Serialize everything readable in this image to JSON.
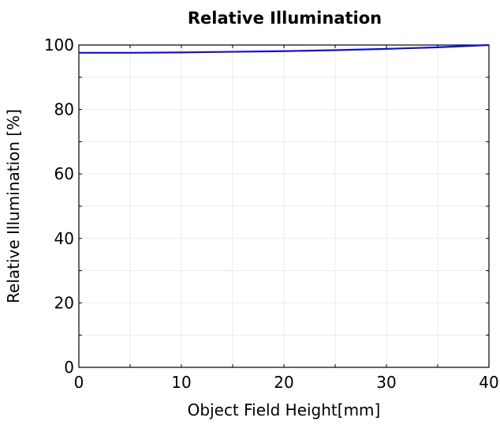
{
  "chart_data": {
    "type": "line",
    "title": "Relative Illumination",
    "xlabel": "Object Field Height[mm]",
    "ylabel": "Relative Illumination  [%]",
    "xlim": [
      0,
      40
    ],
    "ylim": [
      0,
      100
    ],
    "xticks": [
      0,
      10,
      20,
      30,
      40
    ],
    "yticks": [
      0,
      20,
      40,
      60,
      80,
      100
    ],
    "grid": true,
    "series": [
      {
        "color": "#1010d8",
        "x": [
          0,
          5,
          10,
          15,
          20,
          25,
          30,
          35,
          40
        ],
        "y": [
          97.6,
          97.6,
          97.7,
          97.9,
          98.1,
          98.4,
          98.8,
          99.3,
          100
        ]
      }
    ]
  }
}
